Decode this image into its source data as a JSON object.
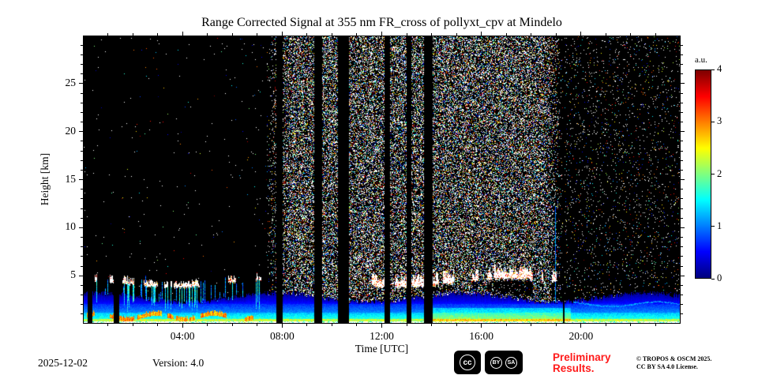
{
  "chart_data": {
    "type": "heatmap",
    "title": "Range Corrected Signal at 355 nm FR_cross of pollyxt_cpv at Mindelo",
    "xlabel": "Time [UTC]",
    "ylabel": "Height [km]",
    "x_range_hours": [
      0,
      24
    ],
    "x_ticks": [
      "04:00",
      "08:00",
      "12:00",
      "16:00",
      "20:00"
    ],
    "x_tick_hours": [
      4,
      8,
      12,
      16,
      20
    ],
    "y_range_km": [
      0,
      30
    ],
    "y_ticks": [
      5,
      10,
      15,
      20,
      25
    ],
    "colorbar": {
      "label": "a.u.",
      "min": 0,
      "max": 4,
      "ticks": [
        0,
        1,
        2,
        3,
        4
      ],
      "colormap": "jet"
    },
    "features": {
      "background": "black (no signal at night above the boundary layer)",
      "daytime_noise": {
        "start_hour": 7.3,
        "end_hour": 19.25,
        "density": 0.38,
        "evening_density": 0.045
      },
      "boundary_layer": "strong aerosol return below ~2-3 km all day (cyan-green-yellow), brightest near the surface",
      "boundary_layer_top_km": 2.7,
      "clouds": "white saturated cloud layer near 4-5.5 km, intermittent 00:30-07:00 and 11:30-19:00 with attenuation shadow below in the afternoon",
      "morning_cloud_hours": [
        0.15,
        7.15
      ],
      "afternoon_cloud_hours": [
        11.6,
        19.05
      ],
      "cloud_base_km": 4.15,
      "data_gaps_hours": [
        [
          0.16,
          0.36
        ],
        [
          1.2,
          1.44
        ],
        [
          7.75,
          8.0
        ],
        [
          9.28,
          9.6
        ],
        [
          10.24,
          10.68
        ],
        [
          12.1,
          12.33
        ],
        [
          13.0,
          13.2
        ],
        [
          13.7,
          14.05
        ],
        [
          19.28,
          19.36
        ]
      ]
    }
  },
  "footer": {
    "date": "2025-12-02",
    "version": "Version: 4.0",
    "preliminary_line1": "Preliminary",
    "preliminary_line2": "Results.",
    "preliminary_color": "#ff1a1a",
    "copyright_line1": "© TROPOS & OSCM 2025.",
    "copyright_line2": "CC BY SA 4.0 License.",
    "cc_badge": {
      "cc": "cc",
      "by": "BY",
      "sa": "SA"
    }
  }
}
